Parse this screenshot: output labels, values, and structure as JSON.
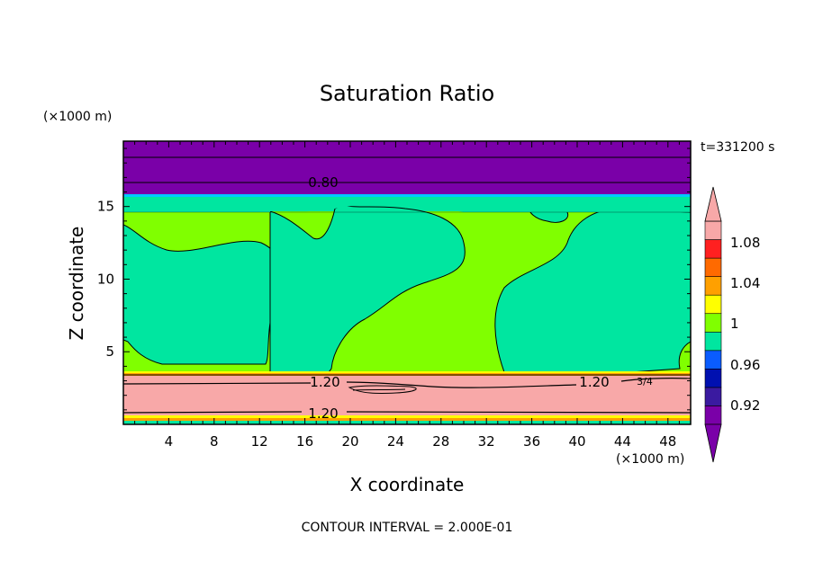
{
  "chart_data": {
    "type": "heatmap",
    "title": "Saturation Ratio",
    "xlabel": "X coordinate",
    "ylabel": "Z coordinate",
    "x_unit": "(×1000 m)",
    "y_unit": "(×1000 m)",
    "time_label": "t=331200 s",
    "footer": "CONTOUR INTERVAL = 2.000E-01",
    "xlim": [
      0,
      50
    ],
    "ylim": [
      0,
      19.5
    ],
    "x_ticks": [
      "4",
      "8",
      "12",
      "16",
      "20",
      "24",
      "28",
      "32",
      "36",
      "40",
      "44",
      "48"
    ],
    "y_ticks": [
      "5",
      "10",
      "15"
    ],
    "contour_labels": [
      "0.80",
      "1.20",
      "1.20",
      "1.20",
      "3/4"
    ],
    "colorbar": {
      "levels": [
        "1.08",
        "1.04",
        "1",
        "0.96",
        "0.92"
      ],
      "colors": [
        "#7a00a8",
        "#3a1aa0",
        "#0010b0",
        "#0a5cff",
        "#00e6a0",
        "#80ff00",
        "#ffff00",
        "#ffa000",
        "#ff6a00",
        "#ff2020",
        "#f8a8a8"
      ]
    },
    "regions": {
      "top_dry_layer": "#7a00a8",
      "transition": "#00e6a0",
      "cloud_green": "#80ff00",
      "cloud_teal": "#00e6a0",
      "supersaturated_layer": "#f8a8a8",
      "bottom_bands": [
        "#ffff00",
        "#ffa000",
        "#00e6a0"
      ]
    }
  }
}
